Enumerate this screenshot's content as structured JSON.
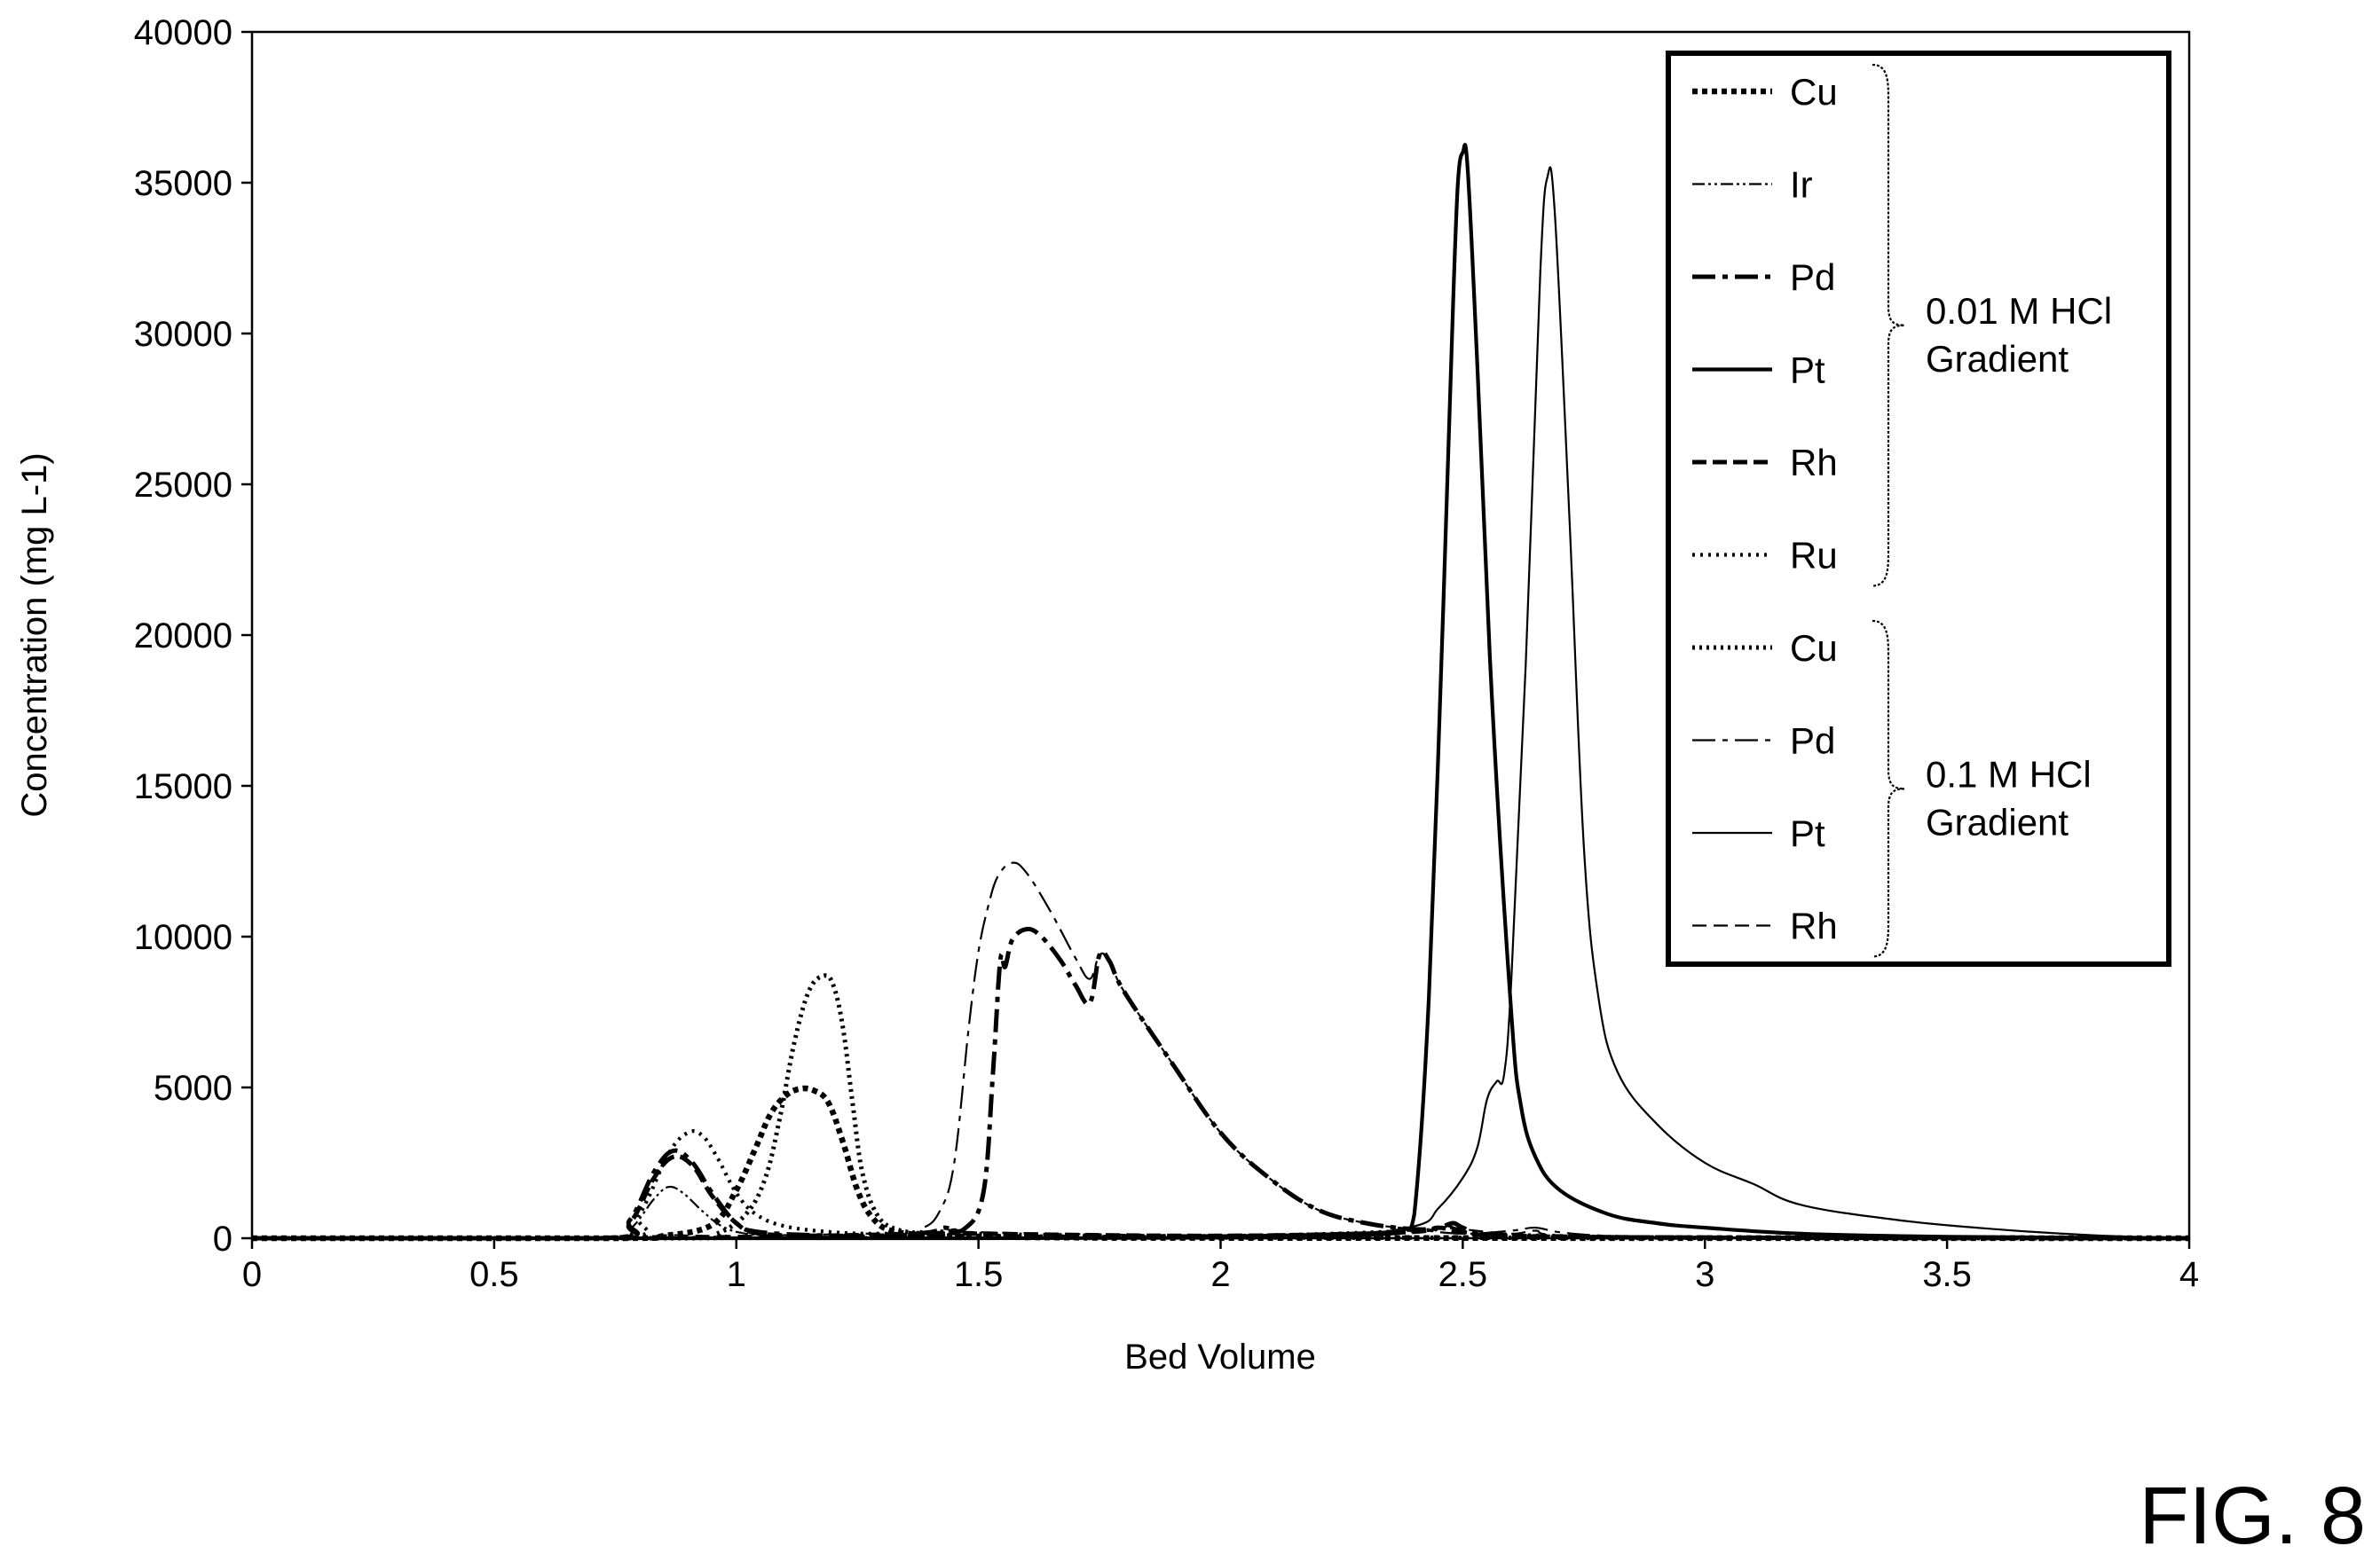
{
  "figure_label": "FIG. 8",
  "chart_data": {
    "type": "line",
    "xlabel": "Bed Volume",
    "ylabel": "Concentration (mg L-1)",
    "xlim": [
      0,
      4
    ],
    "ylim": [
      0,
      40000
    ],
    "xticks": [
      "0",
      "0.5",
      "1",
      "1.5",
      "2",
      "2.5",
      "3",
      "3.5",
      "4"
    ],
    "yticks": [
      "0",
      "5000",
      "10000",
      "15000",
      "20000",
      "25000",
      "30000",
      "35000",
      "40000"
    ],
    "grid": false,
    "legend_position": "top-right",
    "legend_groups": [
      {
        "label_lines": [
          "0.01 M HCl",
          "Gradient"
        ],
        "series": [
          0,
          1,
          2,
          3,
          4,
          5
        ]
      },
      {
        "label_lines": [
          "0.1 M HCl",
          "Gradient"
        ],
        "series": [
          6,
          7,
          8,
          9
        ]
      }
    ],
    "series": [
      {
        "name": "Cu",
        "group": "0.01 M HCl Gradient",
        "dash": "6,5",
        "width": 6.5,
        "points": [
          [
            0,
            0
          ],
          [
            0.75,
            0
          ],
          [
            0.85,
            80
          ],
          [
            0.95,
            450
          ],
          [
            1.0,
            1600
          ],
          [
            1.04,
            3000
          ],
          [
            1.07,
            4100
          ],
          [
            1.1,
            4700
          ],
          [
            1.13,
            4950
          ],
          [
            1.16,
            4900
          ],
          [
            1.19,
            4500
          ],
          [
            1.22,
            3200
          ],
          [
            1.25,
            1600
          ],
          [
            1.28,
            700
          ],
          [
            1.32,
            250
          ],
          [
            1.4,
            100
          ],
          [
            1.5,
            50
          ],
          [
            1.7,
            20
          ],
          [
            2.0,
            10
          ],
          [
            4.0,
            0
          ]
        ]
      },
      {
        "name": "Ir",
        "group": "0.01 M HCl Gradient",
        "dash": "14,4,3,4,3,4",
        "width": 2.2,
        "points": [
          [
            0,
            0
          ],
          [
            0.72,
            0
          ],
          [
            0.78,
            300
          ],
          [
            0.83,
            1300
          ],
          [
            0.86,
            1700
          ],
          [
            0.89,
            1500
          ],
          [
            0.93,
            900
          ],
          [
            0.97,
            400
          ],
          [
            1.02,
            150
          ],
          [
            1.1,
            80
          ],
          [
            1.2,
            50
          ],
          [
            1.4,
            30
          ],
          [
            1.5,
            20
          ],
          [
            2.0,
            10
          ],
          [
            4.0,
            0
          ]
        ]
      },
      {
        "name": "Pd",
        "group": "0.01 M HCl Gradient",
        "dash": "26,8,6,8",
        "width": 5,
        "points": [
          [
            0,
            0
          ],
          [
            0.72,
            0
          ],
          [
            0.78,
            600
          ],
          [
            0.83,
            2200
          ],
          [
            0.87,
            2900
          ],
          [
            0.91,
            2500
          ],
          [
            0.95,
            1500
          ],
          [
            1.0,
            500
          ],
          [
            1.05,
            200
          ],
          [
            1.2,
            80
          ],
          [
            1.3,
            60
          ],
          [
            1.4,
            200
          ],
          [
            1.43,
            350
          ],
          [
            1.47,
            300
          ],
          [
            1.51,
            1500
          ],
          [
            1.53,
            5500
          ],
          [
            1.545,
            9200
          ],
          [
            1.555,
            9000
          ],
          [
            1.57,
            9900
          ],
          [
            1.6,
            10250
          ],
          [
            1.63,
            10000
          ],
          [
            1.67,
            9200
          ],
          [
            1.7,
            8400
          ],
          [
            1.73,
            7800
          ],
          [
            1.75,
            9400
          ],
          [
            1.77,
            9200
          ],
          [
            1.8,
            8200
          ],
          [
            1.9,
            5800
          ],
          [
            2.0,
            3500
          ],
          [
            2.1,
            2000
          ],
          [
            2.2,
            950
          ],
          [
            2.3,
            500
          ],
          [
            2.4,
            300
          ],
          [
            2.45,
            350
          ],
          [
            2.48,
            500
          ],
          [
            2.5,
            350
          ],
          [
            2.55,
            100
          ],
          [
            2.7,
            50
          ],
          [
            3.0,
            20
          ],
          [
            4.0,
            0
          ]
        ]
      },
      {
        "name": "Pt",
        "group": "0.01 M HCl Gradient",
        "dash": "",
        "width": 4.2,
        "points": [
          [
            0,
            0
          ],
          [
            1.5,
            0
          ],
          [
            2.0,
            20
          ],
          [
            2.2,
            60
          ],
          [
            2.35,
            150
          ],
          [
            2.38,
            300
          ],
          [
            2.4,
            800
          ],
          [
            2.43,
            8000
          ],
          [
            2.46,
            21000
          ],
          [
            2.48,
            31000
          ],
          [
            2.49,
            35000
          ],
          [
            2.5,
            36000
          ],
          [
            2.51,
            35500
          ],
          [
            2.53,
            29000
          ],
          [
            2.56,
            18000
          ],
          [
            2.6,
            7500
          ],
          [
            2.62,
            4400
          ],
          [
            2.65,
            2700
          ],
          [
            2.7,
            1600
          ],
          [
            2.8,
            800
          ],
          [
            2.9,
            500
          ],
          [
            3.0,
            350
          ],
          [
            3.2,
            150
          ],
          [
            3.5,
            50
          ],
          [
            4.0,
            0
          ]
        ]
      },
      {
        "name": "Rh",
        "group": "0.01 M HCl Gradient",
        "dash": "16,7",
        "width": 5,
        "points": [
          [
            0,
            0
          ],
          [
            0.72,
            0
          ],
          [
            0.78,
            500
          ],
          [
            0.83,
            2000
          ],
          [
            0.87,
            2700
          ],
          [
            0.91,
            2400
          ],
          [
            0.95,
            1400
          ],
          [
            1.0,
            500
          ],
          [
            1.05,
            150
          ],
          [
            1.2,
            80
          ],
          [
            1.4,
            120
          ],
          [
            1.45,
            200
          ],
          [
            1.5,
            150
          ],
          [
            2.0,
            80
          ],
          [
            2.38,
            200
          ],
          [
            2.45,
            350
          ],
          [
            2.5,
            200
          ],
          [
            2.6,
            80
          ],
          [
            3.0,
            20
          ],
          [
            4.0,
            0
          ]
        ]
      },
      {
        "name": "Ru",
        "group": "0.01 M HCl Gradient",
        "dash": "3,6",
        "width": 4.2,
        "points": [
          [
            0,
            0
          ],
          [
            0.74,
            0
          ],
          [
            0.8,
            800
          ],
          [
            0.86,
            2800
          ],
          [
            0.9,
            3500
          ],
          [
            0.93,
            3400
          ],
          [
            0.96,
            2700
          ],
          [
            1.0,
            1500
          ],
          [
            1.04,
            800
          ],
          [
            1.1,
            400
          ],
          [
            1.2,
            200
          ],
          [
            1.3,
            150
          ],
          [
            1.4,
            200
          ],
          [
            1.45,
            250
          ],
          [
            1.5,
            150
          ],
          [
            2.0,
            80
          ],
          [
            2.4,
            250
          ],
          [
            2.48,
            350
          ],
          [
            2.55,
            150
          ],
          [
            3.0,
            20
          ],
          [
            4.0,
            0
          ]
        ]
      },
      {
        "name": "Cu",
        "group": "0.1 M HCl Gradient",
        "dash": "3,5",
        "width": 5,
        "points": [
          [
            0,
            0
          ],
          [
            0.9,
            0
          ],
          [
            0.96,
            150
          ],
          [
            1.02,
            800
          ],
          [
            1.06,
            2000
          ],
          [
            1.09,
            4000
          ],
          [
            1.12,
            6500
          ],
          [
            1.15,
            8200
          ],
          [
            1.18,
            8700
          ],
          [
            1.2,
            8400
          ],
          [
            1.22,
            7000
          ],
          [
            1.24,
            4500
          ],
          [
            1.26,
            2200
          ],
          [
            1.29,
            800
          ],
          [
            1.33,
            300
          ],
          [
            1.4,
            150
          ],
          [
            1.5,
            80
          ],
          [
            1.8,
            40
          ],
          [
            2.2,
            20
          ],
          [
            4.0,
            0
          ]
        ]
      },
      {
        "name": "Pd",
        "group": "0.1 M HCl Gradient",
        "dash": "26,8,6,8",
        "width": 2.2,
        "points": [
          [
            0,
            0
          ],
          [
            1.3,
            0
          ],
          [
            1.38,
            300
          ],
          [
            1.42,
            900
          ],
          [
            1.45,
            2500
          ],
          [
            1.48,
            7000
          ],
          [
            1.5,
            9500
          ],
          [
            1.52,
            11000
          ],
          [
            1.54,
            12000
          ],
          [
            1.57,
            12450
          ],
          [
            1.6,
            12100
          ],
          [
            1.65,
            10800
          ],
          [
            1.7,
            9300
          ],
          [
            1.73,
            8600
          ],
          [
            1.75,
            9400
          ],
          [
            1.77,
            9200
          ],
          [
            1.8,
            8200
          ],
          [
            1.9,
            5800
          ],
          [
            2.0,
            3500
          ],
          [
            2.1,
            2000
          ],
          [
            2.2,
            950
          ],
          [
            2.3,
            500
          ],
          [
            2.4,
            300
          ],
          [
            2.5,
            150
          ],
          [
            2.6,
            250
          ],
          [
            2.65,
            350
          ],
          [
            2.7,
            200
          ],
          [
            2.8,
            80
          ],
          [
            3.0,
            30
          ],
          [
            4.0,
            0
          ]
        ]
      },
      {
        "name": "Pt",
        "group": "0.1 M HCl Gradient",
        "dash": "",
        "width": 2.2,
        "points": [
          [
            0,
            0
          ],
          [
            1.8,
            0
          ],
          [
            2.2,
            50
          ],
          [
            2.4,
            400
          ],
          [
            2.45,
            1000
          ],
          [
            2.5,
            2000
          ],
          [
            2.53,
            3000
          ],
          [
            2.55,
            4600
          ],
          [
            2.57,
            5200
          ],
          [
            2.585,
            5400
          ],
          [
            2.6,
            8500
          ],
          [
            2.63,
            19000
          ],
          [
            2.66,
            32000
          ],
          [
            2.675,
            35200
          ],
          [
            2.69,
            34000
          ],
          [
            2.72,
            24000
          ],
          [
            2.75,
            13000
          ],
          [
            2.78,
            8000
          ],
          [
            2.82,
            5500
          ],
          [
            2.9,
            3800
          ],
          [
            3.0,
            2500
          ],
          [
            3.1,
            1800
          ],
          [
            3.2,
            1100
          ],
          [
            3.4,
            600
          ],
          [
            3.6,
            300
          ],
          [
            3.8,
            100
          ],
          [
            4.0,
            0
          ]
        ]
      },
      {
        "name": "Rh",
        "group": "0.1 M HCl Gradient",
        "dash": "16,8",
        "width": 2.2,
        "points": [
          [
            0,
            0
          ],
          [
            0.75,
            0
          ],
          [
            0.85,
            100
          ],
          [
            1.0,
            80
          ],
          [
            1.4,
            200
          ],
          [
            1.45,
            300
          ],
          [
            1.5,
            200
          ],
          [
            2.0,
            100
          ],
          [
            2.4,
            250
          ],
          [
            2.46,
            400
          ],
          [
            2.5,
            300
          ],
          [
            2.6,
            150
          ],
          [
            2.65,
            250
          ],
          [
            2.7,
            100
          ],
          [
            3.0,
            30
          ],
          [
            4.0,
            0
          ]
        ]
      }
    ]
  }
}
